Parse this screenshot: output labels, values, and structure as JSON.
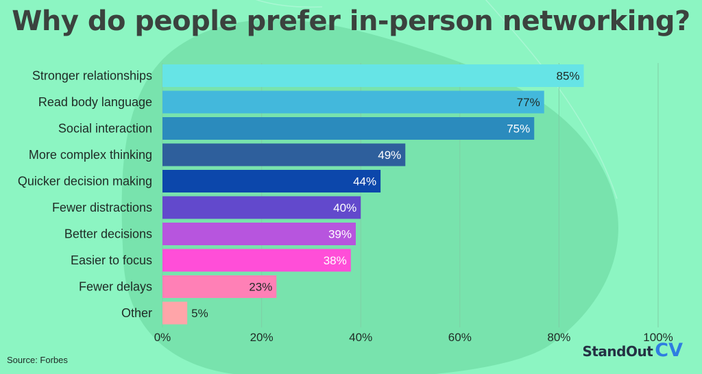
{
  "title": "Why do people prefer in-person networking?",
  "source": "Source: Forbes",
  "brand": {
    "name": "StandOut",
    "suffix": "CV"
  },
  "colors": {
    "background": "#8cf5c2",
    "blob": "#78e3ad",
    "gridline": "#7fcfa5",
    "title": "#3b423e",
    "text": "#1f2a25"
  },
  "chart_data": {
    "type": "bar",
    "orientation": "horizontal",
    "title": "Why do people prefer in-person networking?",
    "xlabel": "",
    "ylabel": "",
    "xlim": [
      0,
      100
    ],
    "x_ticks": [
      "0%",
      "20%",
      "40%",
      "60%",
      "80%",
      "100%"
    ],
    "grid": true,
    "legend": "none",
    "categories": [
      "Stronger relationships",
      "Read body language",
      "Social interaction",
      "More complex thinking",
      "Quicker decision making",
      "Fewer distractions",
      "Better decisions",
      "Easier to focus",
      "Fewer delays",
      "Other"
    ],
    "values": [
      85,
      77,
      75,
      49,
      44,
      40,
      39,
      38,
      23,
      5
    ],
    "value_labels": [
      "85%",
      "77%",
      "75%",
      "49%",
      "44%",
      "40%",
      "39%",
      "38%",
      "23%",
      "5%"
    ],
    "bar_colors": [
      "#66e4e6",
      "#43b8dc",
      "#2b8bbd",
      "#2e5f9c",
      "#0c47ab",
      "#6249cc",
      "#b755de",
      "#ff4ed8",
      "#ff80b6",
      "#ffa5a9"
    ],
    "label_colors": [
      "#1f2a25",
      "#1f2a25",
      "#ffffff",
      "#ffffff",
      "#ffffff",
      "#ffffff",
      "#ffffff",
      "#ffffff",
      "#1f2a25",
      "#1f2a25"
    ]
  }
}
